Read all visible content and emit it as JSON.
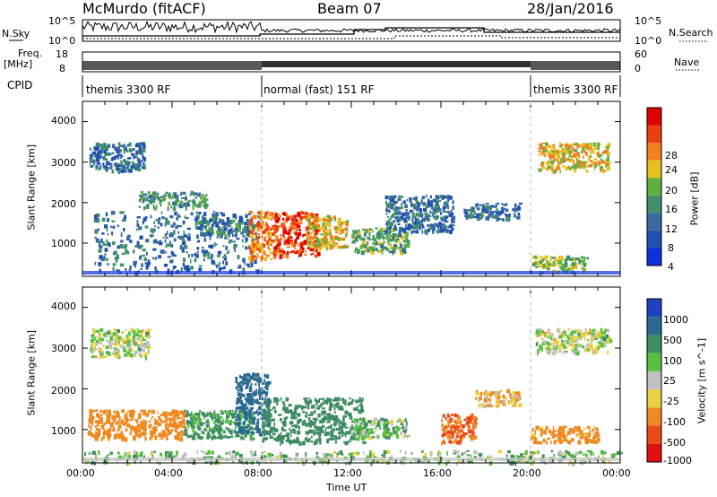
{
  "header": {
    "station": "McMurdo (fitACF)",
    "beam": "Beam 07",
    "date": "28/Jan/2016"
  },
  "noise_panel": {
    "left_label": "N.Sky",
    "right_label": "N.Search",
    "tick_top": "10^5",
    "tick_bottom": "10^0"
  },
  "freq_panel": {
    "left_label_1": "Freq.",
    "left_label_2": "[MHz]",
    "left_tick_top": "18",
    "left_tick_bottom": "8",
    "right_label": "Nave",
    "right_tick_top": "60",
    "right_tick_bottom": "0"
  },
  "cpid": {
    "label": "CPID",
    "segments": [
      {
        "text": "themis 3300 RF",
        "start_hour": 0,
        "end_hour": 8
      },
      {
        "text": "normal (fast) 151 RF",
        "start_hour": 8,
        "end_hour": 20
      },
      {
        "text": "themis 3300 RF",
        "start_hour": 20,
        "end_hour": 24
      }
    ]
  },
  "colors": {
    "power_scale": [
      "#1030e0",
      "#2050b0",
      "#3a6aa0",
      "#40906a",
      "#60b040",
      "#e8c020",
      "#f08020",
      "#e84010",
      "#e00000"
    ],
    "velocity_scale": [
      "#2040c0",
      "#2a6a90",
      "#3e8c62",
      "#58c040",
      "#c0c0c0",
      "#e8d040",
      "#f08a20",
      "#e84a18",
      "#e01010"
    ]
  },
  "chart_data": [
    {
      "type": "heatmap",
      "name": "power",
      "xlabel": "",
      "ylabel": "Slant Range [km]",
      "x_range_hours": [
        0,
        24
      ],
      "y_range_km": [
        180,
        4500
      ],
      "y_ticks": [
        "1000",
        "2000",
        "3000",
        "4000"
      ],
      "colorbar_label": "Power [dB]",
      "colorbar_ticks": [
        "4",
        "8",
        "12",
        "16",
        "20",
        "24",
        "28"
      ],
      "scatter_regions": [
        {
          "x": [
            0.5,
            7.8
          ],
          "y": [
            300,
            1800
          ],
          "value": 8
        },
        {
          "x": [
            0.3,
            2.8
          ],
          "y": [
            2800,
            3500
          ],
          "value": 8
        },
        {
          "x": [
            2.5,
            5.5
          ],
          "y": [
            1900,
            2300
          ],
          "value": 12
        },
        {
          "x": [
            5.0,
            7.6
          ],
          "y": [
            1200,
            1600
          ],
          "value": 10
        },
        {
          "x": [
            7.4,
            8.6
          ],
          "y": [
            600,
            1800
          ],
          "value": 24
        },
        {
          "x": [
            8.5,
            10.5
          ],
          "y": [
            700,
            1800
          ],
          "value": 28
        },
        {
          "x": [
            10.0,
            11.8
          ],
          "y": [
            900,
            1700
          ],
          "value": 20
        },
        {
          "x": [
            12.0,
            14.5
          ],
          "y": [
            800,
            1400
          ],
          "value": 14
        },
        {
          "x": [
            13.5,
            16.5
          ],
          "y": [
            1300,
            2200
          ],
          "value": 8
        },
        {
          "x": [
            17.0,
            19.5
          ],
          "y": [
            1600,
            2000
          ],
          "value": 8
        },
        {
          "x": [
            20.3,
            23.5
          ],
          "y": [
            2800,
            3500
          ],
          "value": 20
        },
        {
          "x": [
            20.0,
            22.5
          ],
          "y": [
            300,
            700
          ],
          "value": 16
        }
      ]
    },
    {
      "type": "heatmap",
      "name": "velocity",
      "xlabel": "Time UT",
      "ylabel": "Slant Range [km]",
      "x_range_hours": [
        0,
        24
      ],
      "x_ticks": [
        "00:00",
        "04:00",
        "08:00",
        "12:00",
        "16:00",
        "20:00",
        "00:00"
      ],
      "y_range_km": [
        180,
        4500
      ],
      "y_ticks": [
        "1000",
        "2000",
        "3000",
        "4000"
      ],
      "colorbar_label": "Velocity [m s^-1]",
      "colorbar_ticks": [
        "1000",
        "500",
        "100",
        "25",
        "-25",
        "-100",
        "-500",
        "-1000"
      ],
      "scatter_regions": [
        {
          "x": [
            0.2,
            4.5
          ],
          "y": [
            800,
            1500
          ],
          "value": -300
        },
        {
          "x": [
            0.3,
            3.0
          ],
          "y": [
            2800,
            3500
          ],
          "value": 0
        },
        {
          "x": [
            4.5,
            7.6
          ],
          "y": [
            800,
            1500
          ],
          "value": 150
        },
        {
          "x": [
            6.8,
            8.3
          ],
          "y": [
            900,
            2400
          ],
          "value": 700
        },
        {
          "x": [
            8.0,
            12.5
          ],
          "y": [
            700,
            1800
          ],
          "value": 300
        },
        {
          "x": [
            12.0,
            14.5
          ],
          "y": [
            800,
            1300
          ],
          "value": 60
        },
        {
          "x": [
            16.0,
            17.5
          ],
          "y": [
            700,
            1400
          ],
          "value": -500
        },
        {
          "x": [
            17.5,
            19.5
          ],
          "y": [
            1600,
            2000
          ],
          "value": -100
        },
        {
          "x": [
            20.2,
            23.5
          ],
          "y": [
            2900,
            3500
          ],
          "value": 0
        },
        {
          "x": [
            20.0,
            23.0
          ],
          "y": [
            700,
            1100
          ],
          "value": -200
        },
        {
          "x": [
            0.0,
            24.0
          ],
          "y": [
            200,
            500
          ],
          "value": 50
        }
      ]
    }
  ]
}
